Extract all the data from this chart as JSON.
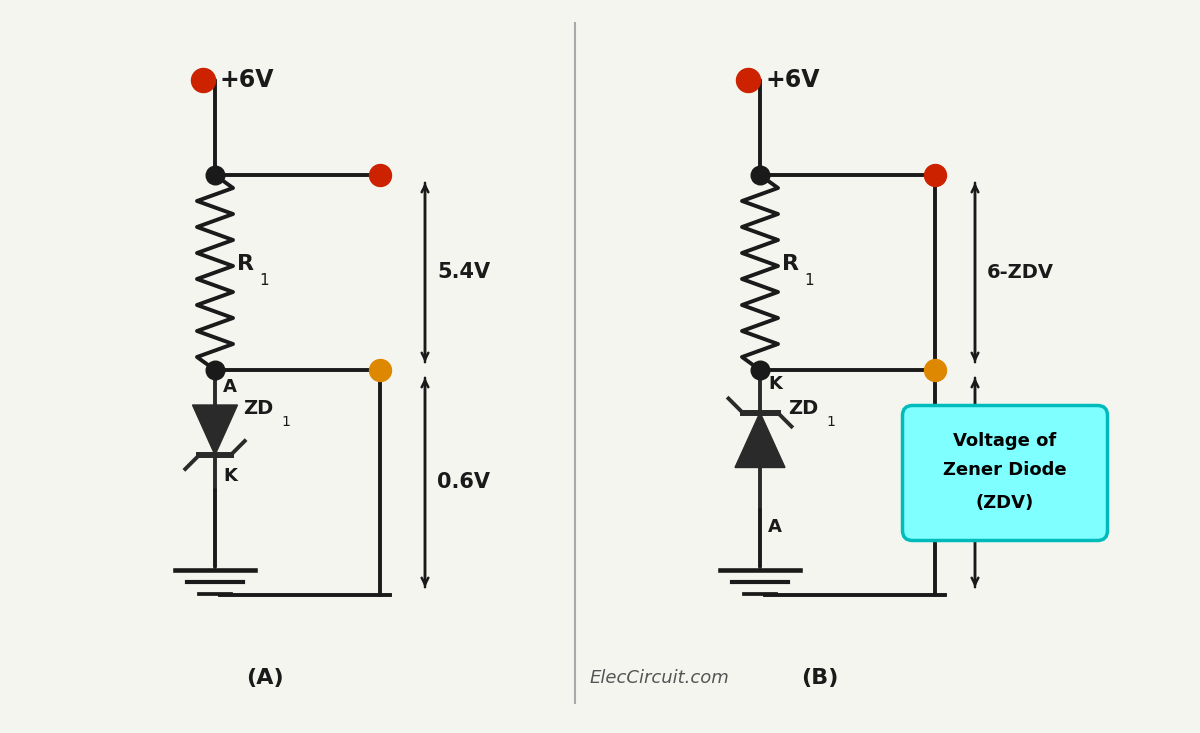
{
  "bg_color": "#f5f5f0",
  "line_color": "#1a1a1a",
  "line_width": 2.8,
  "resistor_color": "#1a1a1a",
  "dot_black": "#1a1a1a",
  "dot_red": "#cc2200",
  "dot_orange": "#dd8800",
  "diode_fill": "#2a2a2a",
  "callout_bg": "#7fffff",
  "callout_border": "#00bbbb",
  "divider_color": "#aaaaaa",
  "watermark": "ElecCircuit.com",
  "cA_vsupply": "+6V",
  "cA_vtop": "5.4V",
  "cA_vbot": "0.6V",
  "cA_r": "R",
  "cA_rsub": "1",
  "cA_zd": "ZD",
  "cA_zdsub": "1",
  "cA_a": "A",
  "cA_k": "K",
  "cB_vsupply": "+6V",
  "cB_vtop": "6-ZDV",
  "cB_r": "R",
  "cB_rsub": "1",
  "cB_zd": "ZD",
  "cB_zdsub": "1",
  "cB_a": "A",
  "cB_k": "K",
  "callout_l1": "Voltage of",
  "callout_l2": "Zener Diode",
  "callout_l3": "(ZDV)",
  "label_A": "(A)",
  "label_B": "(B)"
}
